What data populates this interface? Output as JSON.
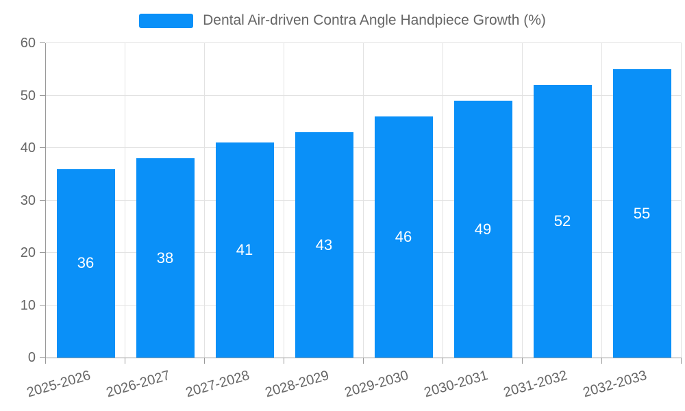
{
  "chart_data": {
    "type": "bar",
    "title": "Dental Air-driven Contra Angle Handpiece Growth (%)",
    "series": [
      {
        "name": "Dental Air-driven Contra Angle Handpiece Growth (%)",
        "values": [
          36,
          38,
          41,
          43,
          46,
          49,
          52,
          55
        ]
      }
    ],
    "categories": [
      "2025-2026",
      "2026-2027",
      "2027-2028",
      "2028-2029",
      "2029-2030",
      "2030-2031",
      "2031-2032",
      "2032-2033"
    ],
    "xlabel": "",
    "ylabel": "",
    "ylim": [
      0,
      60
    ],
    "yticks": [
      0,
      10,
      20,
      30,
      40,
      50,
      60
    ],
    "grid": true,
    "legend_position": "top-center",
    "x_label_rotation_deg": -16,
    "value_labels": "inside-center",
    "colors": {
      "bar": "#0a90f8",
      "value_label_text": "#ffffff",
      "grid_line": "#e2e2e2",
      "axis_line": "#999999",
      "tick_text": "#666666",
      "legend_text": "#666666",
      "background": "#ffffff"
    }
  }
}
